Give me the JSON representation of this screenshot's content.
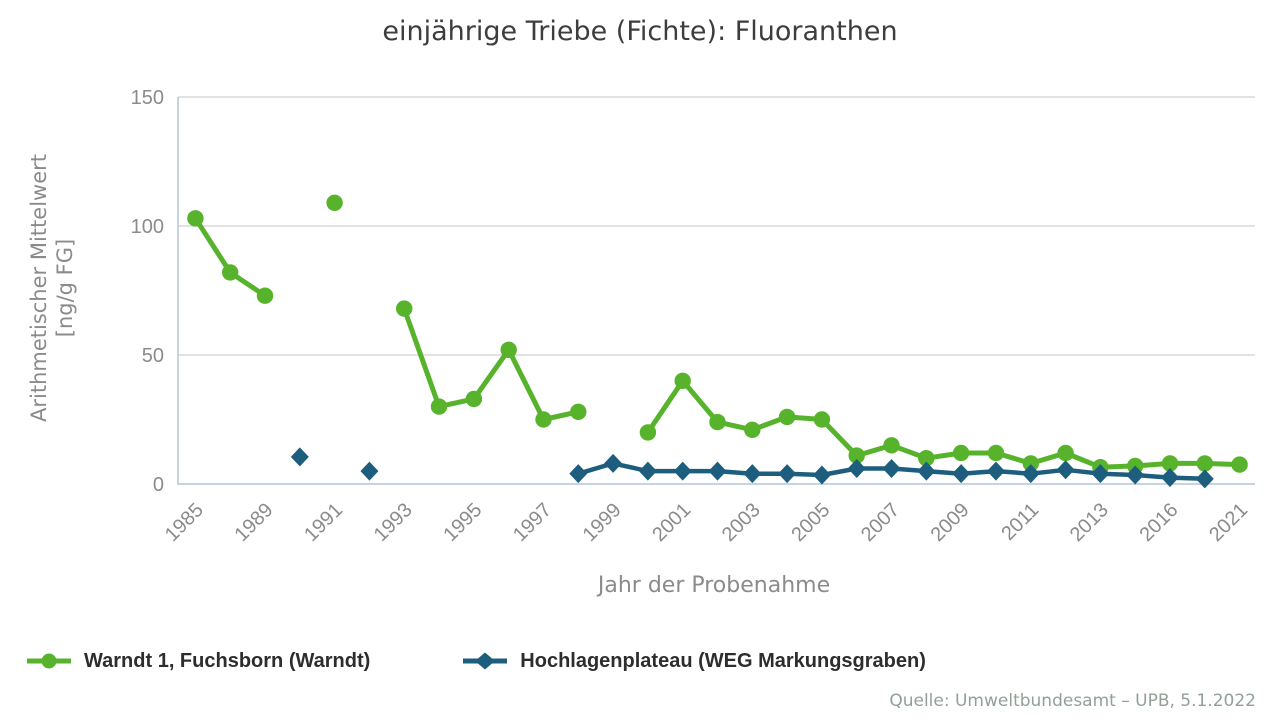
{
  "title": "einjährige Triebe (Fichte): Fluoranthen",
  "axes": {
    "y_label_line1": "Arithmetischer Mittelwert",
    "y_label_line2": "[ng/g FG]",
    "x_label": "Jahr der Probenahme"
  },
  "legend": {
    "items": [
      {
        "label": "Warndt 1, Fuchsborn (Warndt)",
        "marker": "circle",
        "color": "#57b32b"
      },
      {
        "label": "Hochlagenplateau (WEG Markungsgraben)",
        "marker": "diamond",
        "color": "#1d5e7e"
      }
    ]
  },
  "source": "Quelle: Umweltbundesamt – UPB, 5.1.2022",
  "chart_data": {
    "type": "line",
    "title": "einjährige Triebe (Fichte): Fluoranthen",
    "xlabel": "Jahr der Probenahme",
    "ylabel": "Arithmetischer Mittelwert [ng/g FG]",
    "ylim": [
      0,
      150
    ],
    "y_ticks": [
      0,
      50,
      100,
      150
    ],
    "grid": "horizontal",
    "legend_position": "bottom-left",
    "n_categories": 31,
    "x_tick_labels": [
      "1985",
      "1989",
      "1991",
      "1993",
      "1995",
      "1997",
      "1999",
      "2001",
      "2003",
      "2005",
      "2007",
      "2009",
      "2011",
      "2013",
      "2016",
      "2021"
    ],
    "x_tick_indices": [
      0,
      2,
      4,
      6,
      8,
      10,
      12,
      14,
      16,
      18,
      20,
      22,
      24,
      26,
      28,
      30
    ],
    "series": [
      {
        "name": "Warndt 1, Fuchsborn (Warndt)",
        "marker": "circle",
        "color": "#57b32b",
        "values": [
          103,
          82,
          73,
          null,
          109,
          null,
          68,
          30,
          33,
          52,
          25,
          28,
          null,
          20,
          40,
          24,
          21,
          26,
          25,
          11,
          15,
          10,
          12,
          12,
          8,
          12,
          6.5,
          7,
          8,
          8,
          7.5
        ]
      },
      {
        "name": "Hochlagenplateau (WEG Markungsgraben)",
        "marker": "diamond",
        "color": "#1d5e7e",
        "values": [
          null,
          null,
          null,
          10.5,
          null,
          5,
          null,
          null,
          null,
          null,
          null,
          4,
          8,
          5,
          5,
          5,
          4,
          4,
          3.5,
          6,
          6,
          5,
          4,
          5,
          4,
          5.5,
          4,
          3.5,
          2.5,
          2,
          null
        ]
      }
    ]
  }
}
